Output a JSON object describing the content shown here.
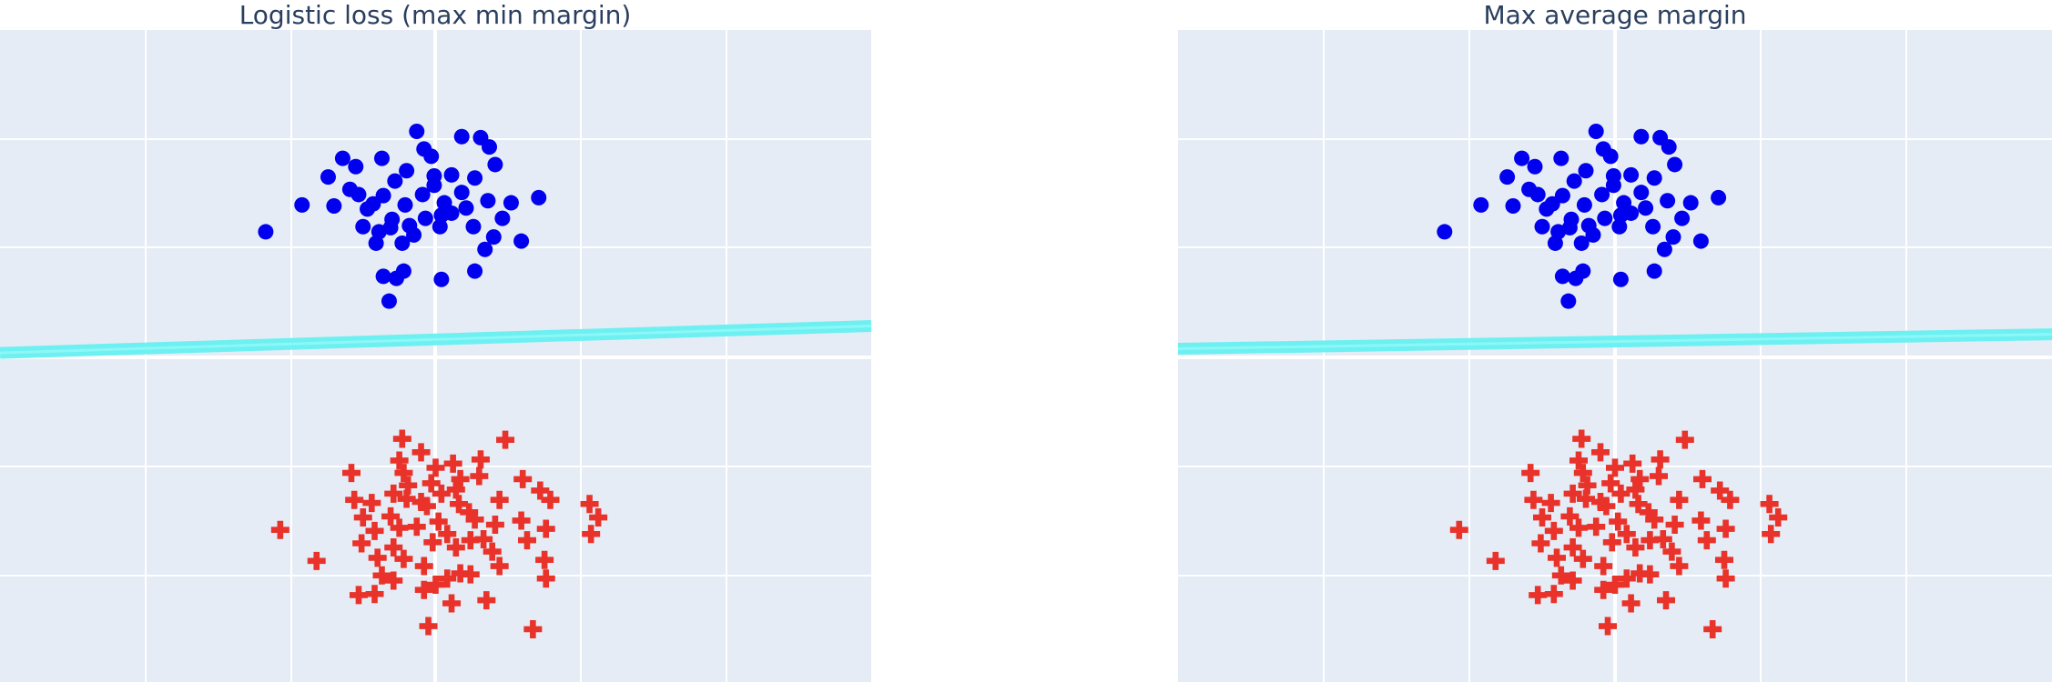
{
  "chart_data": [
    {
      "type": "scatter",
      "title": "Logistic loss (max min margin)",
      "xlim": [
        -3,
        3
      ],
      "ylim": [
        -3.1,
        3.2
      ],
      "grid": true,
      "colors": {
        "background": "#e5ecf6",
        "grid": "#ffffff",
        "class_a": "#0000ee",
        "class_b": "#e8322a",
        "boundary": "#66f0f0"
      },
      "boundary": {
        "x": [
          -3,
          3
        ],
        "y": [
          0.08,
          0.34
        ]
      },
      "series": [
        {
          "marker": "circle",
          "points": [
            [
              -1.17,
              1.25
            ],
            [
              -0.92,
              1.51
            ],
            [
              -0.74,
              1.78
            ],
            [
              -0.64,
              1.96
            ],
            [
              -0.55,
              1.88
            ],
            [
              -0.37,
              1.96
            ],
            [
              -0.53,
              1.61
            ],
            [
              -0.43,
              1.52
            ],
            [
              -0.3,
              1.37
            ],
            [
              -0.13,
              2.22
            ],
            [
              -0.08,
              2.05
            ],
            [
              0.18,
              2.17
            ],
            [
              0.31,
              2.16
            ],
            [
              0.37,
              2.07
            ],
            [
              0.41,
              1.9
            ],
            [
              0.27,
              1.77
            ],
            [
              0.18,
              1.63
            ],
            [
              0.06,
              1.53
            ],
            [
              -0.09,
              1.61
            ],
            [
              0.11,
              1.8
            ],
            [
              -0.03,
              1.98
            ],
            [
              -0.2,
              1.84
            ],
            [
              -0.28,
              1.74
            ],
            [
              -0.36,
              1.6
            ],
            [
              -0.47,
              1.47
            ],
            [
              -0.59,
              1.66
            ],
            [
              -0.7,
              1.5
            ],
            [
              -0.5,
              1.3
            ],
            [
              -0.31,
              1.29
            ],
            [
              -0.21,
              1.51
            ],
            [
              -0.01,
              1.7
            ],
            [
              0.11,
              1.43
            ],
            [
              0.21,
              1.48
            ],
            [
              0.26,
              1.3
            ],
            [
              0.36,
              1.55
            ],
            [
              0.52,
              1.53
            ],
            [
              0.71,
              1.58
            ],
            [
              0.46,
              1.38
            ],
            [
              0.4,
              1.2
            ],
            [
              0.34,
              1.08
            ],
            [
              0.59,
              1.16
            ],
            [
              0.27,
              0.87
            ],
            [
              0.04,
              1.41
            ],
            [
              -0.07,
              1.38
            ],
            [
              -0.18,
              1.31
            ],
            [
              -0.23,
              1.14
            ],
            [
              -0.41,
              1.14
            ],
            [
              -0.15,
              1.22
            ],
            [
              0.03,
              1.3
            ],
            [
              -0.01,
              1.79
            ],
            [
              -0.39,
              1.25
            ],
            [
              -0.36,
              0.82
            ],
            [
              -0.27,
              0.8
            ],
            [
              -0.22,
              0.87
            ],
            [
              0.04,
              0.79
            ],
            [
              -0.32,
              0.58
            ]
          ]
        },
        {
          "marker": "plus",
          "points": [
            [
              -1.07,
              -1.63
            ],
            [
              -0.82,
              -1.93
            ],
            [
              -0.58,
              -1.08
            ],
            [
              -0.56,
              -1.34
            ],
            [
              -0.23,
              -0.75
            ],
            [
              -0.25,
              -0.96
            ],
            [
              -0.22,
              -1.08
            ],
            [
              -0.1,
              -0.88
            ],
            [
              0.0,
              -1.03
            ],
            [
              0.12,
              -0.99
            ],
            [
              0.17,
              -1.14
            ],
            [
              0.31,
              -0.95
            ],
            [
              0.48,
              -0.76
            ],
            [
              0.6,
              -1.14
            ],
            [
              0.72,
              -1.25
            ],
            [
              0.79,
              -1.34
            ],
            [
              0.44,
              -1.34
            ],
            [
              1.06,
              -1.38
            ],
            [
              1.12,
              -1.51
            ],
            [
              1.07,
              -1.67
            ],
            [
              0.76,
              -1.62
            ],
            [
              0.59,
              -1.54
            ],
            [
              0.41,
              -1.58
            ],
            [
              0.27,
              -1.53
            ],
            [
              0.16,
              -1.38
            ],
            [
              0.04,
              -1.28
            ],
            [
              -0.06,
              -1.4
            ],
            [
              -0.2,
              -1.33
            ],
            [
              -0.31,
              -1.5
            ],
            [
              -0.42,
              -1.64
            ],
            [
              -0.5,
              -1.51
            ],
            [
              -0.44,
              -1.37
            ],
            [
              -0.29,
              -1.28
            ],
            [
              -0.19,
              -1.2
            ],
            [
              -0.1,
              -1.36
            ],
            [
              0.02,
              -1.55
            ],
            [
              0.08,
              -1.67
            ],
            [
              0.14,
              -1.8
            ],
            [
              0.24,
              -1.73
            ],
            [
              0.33,
              -1.72
            ],
            [
              0.39,
              -1.84
            ],
            [
              0.44,
              -1.98
            ],
            [
              0.63,
              -1.73
            ],
            [
              0.75,
              -1.92
            ],
            [
              0.76,
              -2.1
            ],
            [
              -0.51,
              -1.76
            ],
            [
              -0.29,
              -1.8
            ],
            [
              -0.22,
              -1.91
            ],
            [
              -0.08,
              -1.98
            ],
            [
              -0.02,
              -1.75
            ],
            [
              -0.13,
              -1.6
            ],
            [
              -0.25,
              -1.61
            ],
            [
              -0.4,
              -1.9
            ],
            [
              -0.37,
              -2.07
            ],
            [
              -0.29,
              -2.12
            ],
            [
              -0.42,
              -2.25
            ],
            [
              -0.53,
              -2.26
            ],
            [
              -0.08,
              -2.21
            ],
            [
              0.0,
              -2.16
            ],
            [
              0.08,
              -2.1
            ],
            [
              0.17,
              -2.05
            ],
            [
              0.24,
              -2.06
            ],
            [
              0.11,
              -2.34
            ],
            [
              0.35,
              -2.31
            ],
            [
              0.67,
              -2.59
            ],
            [
              -0.05,
              -2.56
            ],
            [
              0.14,
              -1.24
            ],
            [
              0.23,
              -1.46
            ],
            [
              0.3,
              -1.11
            ],
            [
              -0.03,
              -1.18
            ]
          ]
        }
      ]
    },
    {
      "type": "scatter",
      "title": "Max average margin",
      "xlim": [
        -3,
        3
      ],
      "ylim": [
        -3.1,
        3.2
      ],
      "grid": true,
      "colors": {
        "background": "#e5ecf6",
        "grid": "#ffffff",
        "class_a": "#0000ee",
        "class_b": "#e8322a",
        "boundary": "#66f0f0"
      },
      "boundary": {
        "x": [
          -3,
          3
        ],
        "y": [
          0.12,
          0.26
        ]
      },
      "series": [
        {
          "marker": "circle",
          "points": [
            [
              -1.17,
              1.25
            ],
            [
              -0.92,
              1.51
            ],
            [
              -0.74,
              1.78
            ],
            [
              -0.64,
              1.96
            ],
            [
              -0.55,
              1.88
            ],
            [
              -0.37,
              1.96
            ],
            [
              -0.53,
              1.61
            ],
            [
              -0.43,
              1.52
            ],
            [
              -0.3,
              1.37
            ],
            [
              -0.13,
              2.22
            ],
            [
              -0.08,
              2.05
            ],
            [
              0.18,
              2.17
            ],
            [
              0.31,
              2.16
            ],
            [
              0.37,
              2.07
            ],
            [
              0.41,
              1.9
            ],
            [
              0.27,
              1.77
            ],
            [
              0.18,
              1.63
            ],
            [
              0.06,
              1.53
            ],
            [
              -0.09,
              1.61
            ],
            [
              0.11,
              1.8
            ],
            [
              -0.03,
              1.98
            ],
            [
              -0.2,
              1.84
            ],
            [
              -0.28,
              1.74
            ],
            [
              -0.36,
              1.6
            ],
            [
              -0.47,
              1.47
            ],
            [
              -0.59,
              1.66
            ],
            [
              -0.7,
              1.5
            ],
            [
              -0.5,
              1.3
            ],
            [
              -0.31,
              1.29
            ],
            [
              -0.21,
              1.51
            ],
            [
              -0.01,
              1.7
            ],
            [
              0.11,
              1.43
            ],
            [
              0.21,
              1.48
            ],
            [
              0.26,
              1.3
            ],
            [
              0.36,
              1.55
            ],
            [
              0.52,
              1.53
            ],
            [
              0.71,
              1.58
            ],
            [
              0.46,
              1.38
            ],
            [
              0.4,
              1.2
            ],
            [
              0.34,
              1.08
            ],
            [
              0.59,
              1.16
            ],
            [
              0.27,
              0.87
            ],
            [
              0.04,
              1.41
            ],
            [
              -0.07,
              1.38
            ],
            [
              -0.18,
              1.31
            ],
            [
              -0.23,
              1.14
            ],
            [
              -0.41,
              1.14
            ],
            [
              -0.15,
              1.22
            ],
            [
              0.03,
              1.3
            ],
            [
              -0.01,
              1.79
            ],
            [
              -0.39,
              1.25
            ],
            [
              -0.36,
              0.82
            ],
            [
              -0.27,
              0.8
            ],
            [
              -0.22,
              0.87
            ],
            [
              0.04,
              0.79
            ],
            [
              -0.32,
              0.58
            ]
          ]
        },
        {
          "marker": "plus",
          "points": [
            [
              -1.07,
              -1.63
            ],
            [
              -0.82,
              -1.93
            ],
            [
              -0.58,
              -1.08
            ],
            [
              -0.56,
              -1.34
            ],
            [
              -0.23,
              -0.75
            ],
            [
              -0.25,
              -0.96
            ],
            [
              -0.22,
              -1.08
            ],
            [
              -0.1,
              -0.88
            ],
            [
              0.0,
              -1.03
            ],
            [
              0.12,
              -0.99
            ],
            [
              0.17,
              -1.14
            ],
            [
              0.31,
              -0.95
            ],
            [
              0.48,
              -0.76
            ],
            [
              0.6,
              -1.14
            ],
            [
              0.72,
              -1.25
            ],
            [
              0.79,
              -1.34
            ],
            [
              0.44,
              -1.34
            ],
            [
              1.06,
              -1.38
            ],
            [
              1.12,
              -1.51
            ],
            [
              1.07,
              -1.67
            ],
            [
              0.76,
              -1.62
            ],
            [
              0.59,
              -1.54
            ],
            [
              0.41,
              -1.58
            ],
            [
              0.27,
              -1.53
            ],
            [
              0.16,
              -1.38
            ],
            [
              0.04,
              -1.28
            ],
            [
              -0.06,
              -1.4
            ],
            [
              -0.2,
              -1.33
            ],
            [
              -0.31,
              -1.5
            ],
            [
              -0.42,
              -1.64
            ],
            [
              -0.5,
              -1.51
            ],
            [
              -0.44,
              -1.37
            ],
            [
              -0.29,
              -1.28
            ],
            [
              -0.19,
              -1.2
            ],
            [
              -0.1,
              -1.36
            ],
            [
              0.02,
              -1.55
            ],
            [
              0.08,
              -1.67
            ],
            [
              0.14,
              -1.8
            ],
            [
              0.24,
              -1.73
            ],
            [
              0.33,
              -1.72
            ],
            [
              0.39,
              -1.84
            ],
            [
              0.44,
              -1.98
            ],
            [
              0.63,
              -1.73
            ],
            [
              0.75,
              -1.92
            ],
            [
              0.76,
              -2.1
            ],
            [
              -0.51,
              -1.76
            ],
            [
              -0.29,
              -1.8
            ],
            [
              -0.22,
              -1.91
            ],
            [
              -0.08,
              -1.98
            ],
            [
              -0.02,
              -1.75
            ],
            [
              -0.13,
              -1.6
            ],
            [
              -0.25,
              -1.61
            ],
            [
              -0.4,
              -1.9
            ],
            [
              -0.37,
              -2.07
            ],
            [
              -0.29,
              -2.12
            ],
            [
              -0.42,
              -2.25
            ],
            [
              -0.53,
              -2.26
            ],
            [
              -0.08,
              -2.21
            ],
            [
              0.0,
              -2.16
            ],
            [
              0.08,
              -2.1
            ],
            [
              0.17,
              -2.05
            ],
            [
              0.24,
              -2.06
            ],
            [
              0.11,
              -2.34
            ],
            [
              0.35,
              -2.31
            ],
            [
              0.67,
              -2.59
            ],
            [
              -0.05,
              -2.56
            ],
            [
              0.14,
              -1.24
            ],
            [
              0.23,
              -1.46
            ],
            [
              0.3,
              -1.11
            ],
            [
              -0.03,
              -1.18
            ]
          ]
        }
      ]
    }
  ]
}
